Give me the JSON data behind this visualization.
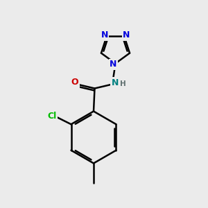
{
  "bg_color": "#ebebeb",
  "bond_color": "#000000",
  "bond_width": 1.8,
  "atom_colors": {
    "N_blue": "#0000dd",
    "N_teal": "#008080",
    "O": "#cc0000",
    "Cl": "#00bb00",
    "H": "#607070"
  },
  "font_size_atom": 9,
  "font_size_small": 7.5,
  "xlim": [
    0,
    10
  ],
  "ylim": [
    0,
    10
  ]
}
